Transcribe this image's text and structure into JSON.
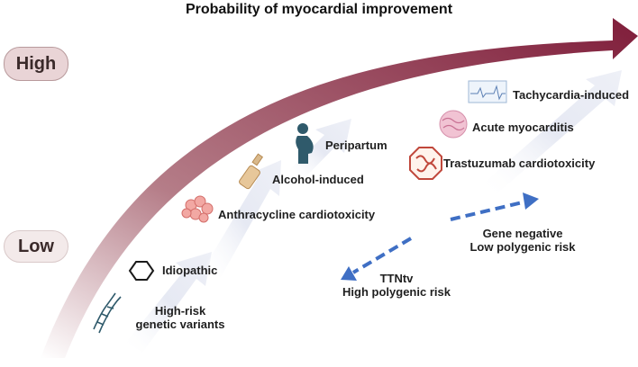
{
  "title": "Probability of myocardial improvement",
  "scale": {
    "high": "High",
    "low": "Low"
  },
  "conditions": [
    {
      "id": "tachycardia",
      "label": "Tachycardia-induced",
      "icon": "ecg-strip-icon"
    },
    {
      "id": "myocarditis",
      "label": "Acute myocarditis",
      "icon": "tissue-section-icon"
    },
    {
      "id": "trastuzumab",
      "label": "Trastuzumab cardiotoxicity",
      "icon": "protein-structure-icon"
    },
    {
      "id": "peripartum",
      "label": "Peripartum",
      "icon": "pregnant-woman-icon"
    },
    {
      "id": "alcohol",
      "label": "Alcohol-induced",
      "icon": "bottle-icon"
    },
    {
      "id": "anthracycline",
      "label": "Anthracycline cardiotoxicity",
      "icon": "cell-cluster-icon"
    },
    {
      "id": "idiopathic",
      "label": "Idiopathic",
      "icon": "hexagon-icon"
    },
    {
      "id": "genetic",
      "label_line1": "High-risk",
      "label_line2": "genetic variants",
      "icon": "dna-icon"
    }
  ],
  "modifiers": {
    "positive": {
      "line1": "Gene negative",
      "line2": "Low polygenic risk",
      "direction": "up-right"
    },
    "negative": {
      "line1": "TTNtv",
      "line2": "High polygenic risk",
      "direction": "down-left"
    }
  },
  "colors": {
    "main_arrow": "#7f1d3a",
    "dashed_arrow": "#3f6fc4",
    "step_arrow": "#e9ecf5"
  }
}
